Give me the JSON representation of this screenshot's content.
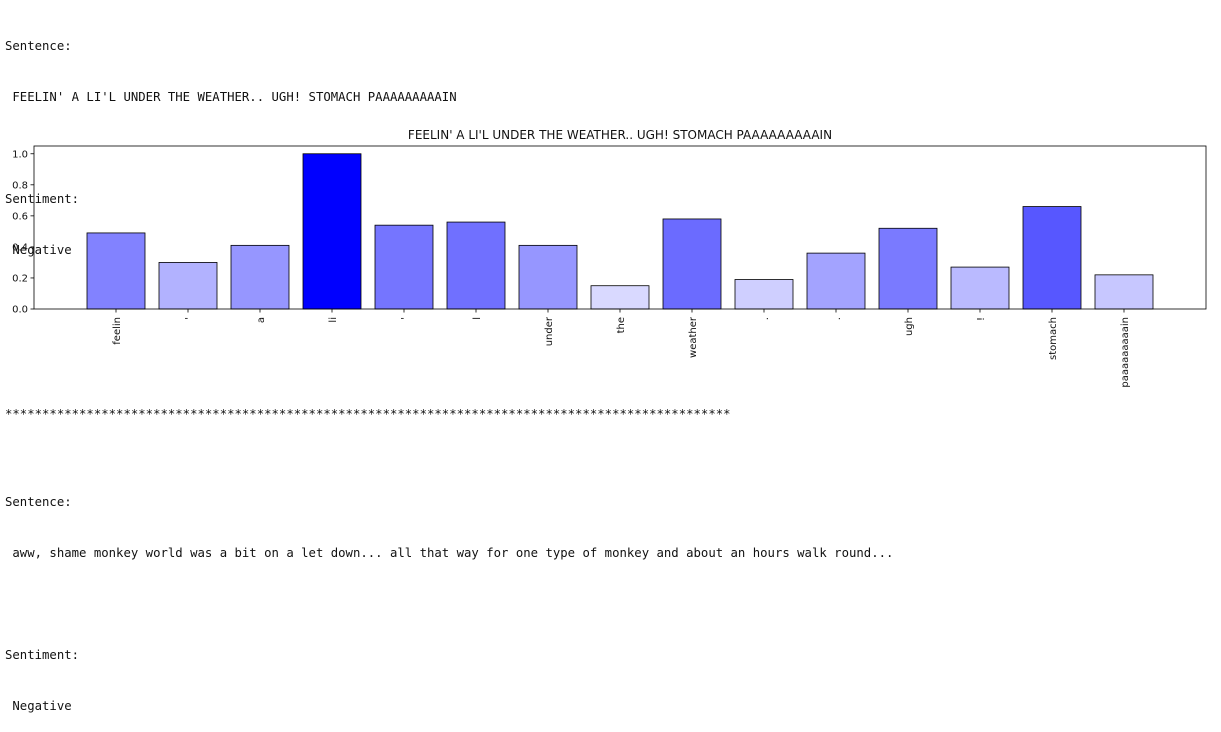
{
  "output1": {
    "sentence_label": "Sentence:",
    "sentence": " FEELIN' A LI'L UNDER THE WEATHER.. UGH! STOMACH PAAAAAAAAAIN",
    "sentiment_label": "Sentiment:",
    "sentiment": " Negative"
  },
  "separator": "**************************************************************************************************",
  "output2": {
    "sentence_label": "Sentence:",
    "sentence": " aww, shame monkey world was a bit on a let down... all that way for one type of monkey and about an hours walk round...",
    "sentiment_label": "Sentiment:",
    "sentiment": " Negative"
  },
  "chart_data": {
    "type": "bar",
    "title": "FEELIN' A LI'L UNDER THE WEATHER.. UGH! STOMACH PAAAAAAAAAIN",
    "categories": [
      "feelin",
      "'",
      "a",
      "li",
      "'",
      "l",
      "under",
      "the",
      "weather",
      ".",
      ".",
      "ugh",
      "!",
      "stomach",
      "paaaaaaaaain"
    ],
    "values": [
      0.49,
      0.3,
      0.41,
      1.0,
      0.54,
      0.56,
      0.41,
      0.15,
      0.58,
      0.19,
      0.36,
      0.52,
      0.27,
      0.66,
      0.22
    ],
    "ylim": [
      0,
      1.05
    ],
    "yticks": [
      "0.0",
      "0.2",
      "0.4",
      "0.6",
      "0.8",
      "1.0"
    ],
    "xlabel": "",
    "ylabel": "",
    "color_scale": "opacity of #0000ff proportional to value",
    "bar_color": "#0000ff",
    "edge_color": "#000000",
    "grid": false
  }
}
